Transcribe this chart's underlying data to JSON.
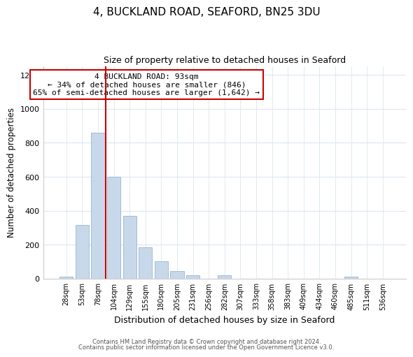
{
  "title": "4, BUCKLAND ROAD, SEAFORD, BN25 3DU",
  "subtitle": "Size of property relative to detached houses in Seaford",
  "xlabel": "Distribution of detached houses by size in Seaford",
  "ylabel": "Number of detached properties",
  "bar_labels": [
    "28sqm",
    "53sqm",
    "78sqm",
    "104sqm",
    "129sqm",
    "155sqm",
    "180sqm",
    "205sqm",
    "231sqm",
    "256sqm",
    "282sqm",
    "307sqm",
    "333sqm",
    "358sqm",
    "383sqm",
    "409sqm",
    "434sqm",
    "460sqm",
    "485sqm",
    "511sqm",
    "536sqm"
  ],
  "bar_values": [
    12,
    318,
    858,
    600,
    370,
    185,
    102,
    47,
    22,
    0,
    19,
    0,
    0,
    0,
    0,
    0,
    0,
    0,
    12,
    0,
    0
  ],
  "bar_color": "#c8d8eb",
  "bar_edge_color": "#9ab5cc",
  "ylim": [
    0,
    1250
  ],
  "yticks": [
    0,
    200,
    400,
    600,
    800,
    1000,
    1200
  ],
  "property_line_x": 2.5,
  "property_line_color": "#cc0000",
  "annotation_line1": "4 BUCKLAND ROAD: 93sqm",
  "annotation_line2": "← 34% of detached houses are smaller (846)",
  "annotation_line3": "65% of semi-detached houses are larger (1,642) →",
  "annotation_box_color": "#ffffff",
  "annotation_border_color": "#cc0000",
  "footer_line1": "Contains HM Land Registry data © Crown copyright and database right 2024.",
  "footer_line2": "Contains public sector information licensed under the Open Government Licence v3.0.",
  "background_color": "#ffffff",
  "grid_color": "#dce6f0"
}
